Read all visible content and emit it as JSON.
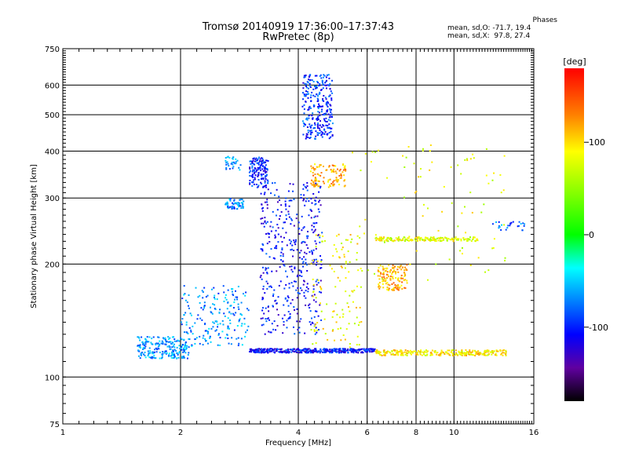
{
  "header": {
    "title_line1": "Tromsø 20140919 17:36:00–17:37:43",
    "title_line2": "RwPretec (8p)"
  },
  "phases": {
    "title": "Phases",
    "line_o": "mean, sd,O: -71.7, 19.4",
    "line_x": "mean, sd,X:  97.8, 27.4"
  },
  "colorbar": {
    "unit_label": "[deg]",
    "range": [
      -180,
      180
    ],
    "tick_labels": [
      "100",
      "0",
      "-100"
    ],
    "tick_values": [
      100,
      0,
      -100
    ]
  },
  "chart_data": {
    "type": "scatter",
    "xlabel": "Frequency [MHz]",
    "ylabel": "Stationary phase Virtual Height [km]",
    "x_scale": "log",
    "y_scale": "log",
    "xlim": [
      1,
      16
    ],
    "ylim": [
      75,
      750
    ],
    "x_ticks": [
      1,
      2,
      4,
      6,
      8,
      10,
      16
    ],
    "x_tick_labels": [
      "1",
      "2",
      "4",
      "6",
      "8",
      "10",
      "16"
    ],
    "y_ticks": [
      75,
      100,
      200,
      300,
      400,
      500,
      600,
      750
    ],
    "y_tick_labels": [
      "75",
      "100",
      "200",
      "300",
      "400",
      "500",
      "600",
      "750"
    ],
    "grid": true,
    "color_meaning": "phase [deg]",
    "clusters": [
      {
        "x_range": [
          1.55,
          2.1
        ],
        "y_range": [
          112,
          128
        ],
        "phase": -65,
        "density": 220
      },
      {
        "x_range": [
          2.0,
          3.0
        ],
        "y_range": [
          120,
          175
        ],
        "phase": -70,
        "density": 200
      },
      {
        "x_range": [
          2.6,
          2.9
        ],
        "y_range": [
          280,
          300
        ],
        "phase": -75,
        "density": 60
      },
      {
        "x_range": [
          2.6,
          2.85
        ],
        "y_range": [
          355,
          390
        ],
        "phase": -70,
        "density": 30
      },
      {
        "x_range": [
          3.0,
          3.35
        ],
        "y_range": [
          320,
          385
        ],
        "phase": -100,
        "density": 140
      },
      {
        "x_range": [
          3.2,
          4.6
        ],
        "y_range": [
          130,
          330
        ],
        "phase": -105,
        "density": 420
      },
      {
        "x_range": [
          3.0,
          6.3
        ],
        "y_range": [
          116,
          119
        ],
        "phase": -105,
        "density": 420
      },
      {
        "x_range": [
          4.1,
          4.9
        ],
        "y_range": [
          430,
          640
        ],
        "phase": -95,
        "density": 280
      },
      {
        "x_range": [
          4.3,
          5.3
        ],
        "y_range": [
          320,
          370
        ],
        "phase": 115,
        "density": 110
      },
      {
        "x_range": [
          4.3,
          5.8
        ],
        "y_range": [
          120,
          240
        ],
        "phase": 90,
        "density": 120
      },
      {
        "x_range": [
          6.4,
          7.6
        ],
        "y_range": [
          170,
          200
        ],
        "phase": 115,
        "density": 140
      },
      {
        "x_range": [
          6.3,
          11.5
        ],
        "y_range": [
          230,
          236
        ],
        "phase": 80,
        "density": 180
      },
      {
        "x_range": [
          6.3,
          13.6
        ],
        "y_range": [
          114,
          118
        ],
        "phase": 95,
        "density": 280
      },
      {
        "x_range": [
          5.5,
          14.0
        ],
        "y_range": [
          180,
          420
        ],
        "phase": 80,
        "density": 90
      },
      {
        "x_range": [
          12.5,
          15.2
        ],
        "y_range": [
          245,
          260
        ],
        "phase": -80,
        "density": 25
      }
    ]
  }
}
